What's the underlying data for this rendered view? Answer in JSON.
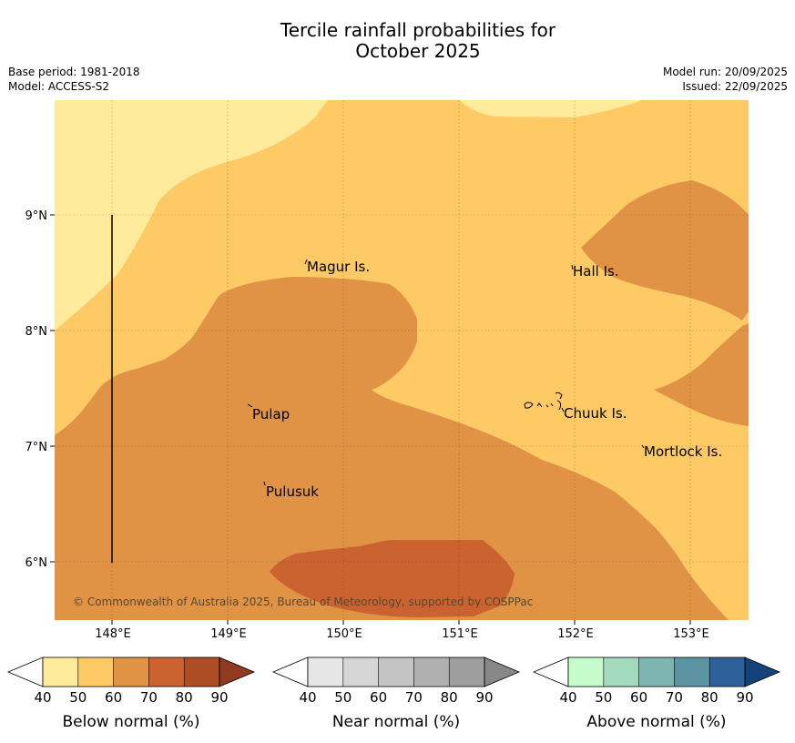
{
  "title": {
    "line1": "Tercile rainfall probabilities for",
    "line2": "October 2025"
  },
  "meta": {
    "base_period": "Base period: 1981-2018",
    "model": "Model: ACCESS-S2",
    "model_run": "Model run: 20/09/2025",
    "issued": "Issued: 22/09/2025"
  },
  "map": {
    "lat_labels": [
      "9°N",
      "8°N",
      "7°N",
      "6°N"
    ],
    "lon_labels": [
      "148°E",
      "149°E",
      "150°E",
      "151°E",
      "152°E",
      "153°E"
    ],
    "places": [
      "Magur Is.",
      "Hall Is.",
      "Pulap",
      "Chuuk Is.",
      "Mortlock Is.",
      "Pulusuk"
    ],
    "copyright": "© Commonwealth of Australia 2025, Bureau of Meteorology, supported by COSPPac"
  },
  "colors": {
    "below_40_50": "#ffeb9b",
    "below_50_60": "#fdca66",
    "below_60_70": "#e09344",
    "below_70_80": "#ca6330",
    "below_80_90": "#ad4d26",
    "below_90": "#903a20",
    "near": [
      "#e6e6e6",
      "#d5d5d5",
      "#c4c4c4",
      "#b0b0b0",
      "#9e9e9e",
      "#878787"
    ],
    "above": [
      "#c6fccc",
      "#a3d9bd",
      "#7fb5b1",
      "#5d94a2",
      "#2e6199",
      "#14437c"
    ]
  },
  "legends": [
    {
      "title": "Below normal (%)",
      "ticks": [
        "40",
        "50",
        "60",
        "70",
        "80",
        "90"
      ]
    },
    {
      "title": "Near normal (%)",
      "ticks": [
        "40",
        "50",
        "60",
        "70",
        "80",
        "90"
      ]
    },
    {
      "title": "Above normal (%)",
      "ticks": [
        "40",
        "50",
        "60",
        "70",
        "80",
        "90"
      ]
    }
  ]
}
